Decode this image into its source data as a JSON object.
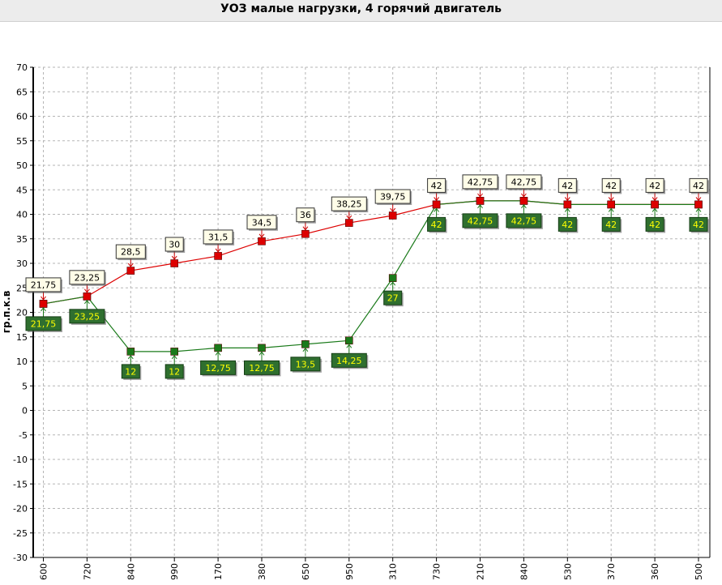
{
  "chart_data": {
    "type": "line",
    "title": "УОЗ малые нагрузки, 4 горячий двигатель",
    "ylabel": "гр.п.к.в",
    "xlabel": "",
    "ylim": [
      -30,
      70
    ],
    "yticks": [
      70,
      65,
      60,
      55,
      50,
      45,
      40,
      35,
      30,
      25,
      20,
      15,
      10,
      5,
      0,
      -5,
      -10,
      -15,
      -20,
      -25,
      -30
    ],
    "categories": [
      "600",
      "720",
      "840",
      "990",
      "170",
      "380",
      "650",
      "950",
      "310",
      "730",
      "210",
      "840",
      "530",
      "370",
      "360",
      "500"
    ],
    "grid": true,
    "series": [
      {
        "color": "#dd0000",
        "label_style": "light",
        "values": [
          21.75,
          23.25,
          28.5,
          30,
          31.5,
          34.5,
          36,
          38.25,
          39.75,
          42,
          42.75,
          42.75,
          42,
          42,
          42,
          42
        ],
        "labels": [
          "21,75",
          "23,25",
          "28,5",
          "30",
          "31,5",
          "34,5",
          "36",
          "38,25",
          "39,75",
          "42",
          "42,75",
          "42,75",
          "42",
          "42",
          "42",
          "42"
        ]
      },
      {
        "color": "#1a7a1a",
        "label_style": "dark",
        "values": [
          21.75,
          23.25,
          12,
          12,
          12.75,
          12.75,
          13.5,
          14.25,
          27,
          42,
          42.75,
          42.75,
          42,
          42,
          42,
          42
        ],
        "labels": [
          "21,75",
          "23,25",
          "12",
          "12",
          "12,75",
          "12,75",
          "13,5",
          "14,25",
          "27",
          "42",
          "42,75",
          "42,75",
          "42",
          "42",
          "42",
          "42"
        ]
      }
    ]
  }
}
